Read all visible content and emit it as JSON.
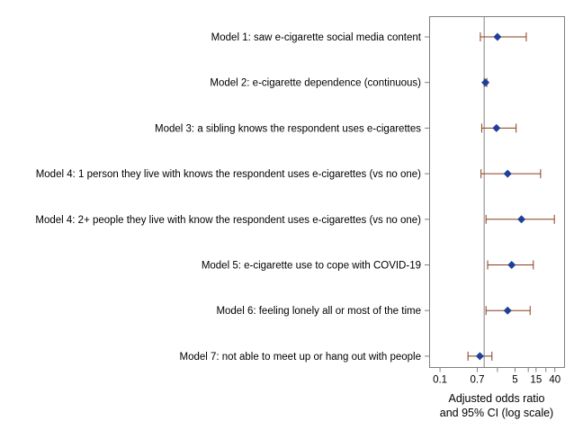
{
  "chart_data": {
    "type": "forest",
    "scale": "log",
    "xlabel_lines": [
      "Adjusted odds ratio",
      "and 95% CI (log scale)"
    ],
    "xticks": [
      {
        "value": 0.1,
        "label": "0.1"
      },
      {
        "value": 0.7,
        "label": "0.7"
      },
      {
        "value": 2,
        "label": ""
      },
      {
        "value": 5,
        "label": "5"
      },
      {
        "value": 10,
        "label": ""
      },
      {
        "value": 15,
        "label": "15"
      },
      {
        "value": 25,
        "label": ""
      },
      {
        "value": 40,
        "label": "40"
      }
    ],
    "xlim": [
      0.07,
      55
    ],
    "reference_line": 1,
    "rows": [
      {
        "label": "Model 1: saw e-cigarette social media content",
        "or": 2.0,
        "lo": 0.82,
        "hi": 9.0
      },
      {
        "label": "Model 2: e-cigarette dependence (continuous)",
        "or": 1.07,
        "lo": 1.0,
        "hi": 1.15
      },
      {
        "label": "Model 3: a sibling knows the respondent uses e-cigarettes",
        "or": 1.9,
        "lo": 0.88,
        "hi": 5.3
      },
      {
        "label": "Model 4: 1 person they live with knows the respondent uses e-cigarettes (vs no one)",
        "or": 3.4,
        "lo": 0.85,
        "hi": 19.0
      },
      {
        "label": "Model 4: 2+ people they live with know the respondent uses e-cigarettes (vs no one)",
        "or": 7.0,
        "lo": 1.1,
        "hi": 39.0
      },
      {
        "label": "Model 5: e-cigarette use to cope with COVID-19",
        "or": 4.2,
        "lo": 1.2,
        "hi": 13.0
      },
      {
        "label": "Model 6: feeling lonely all or most of the time",
        "or": 3.4,
        "lo": 1.1,
        "hi": 11.0
      },
      {
        "label": "Model 7: not able to meet up or hang out with people",
        "or": 0.8,
        "lo": 0.43,
        "hi": 1.5
      }
    ],
    "colors": {
      "marker": "#1f3f99",
      "ci": "#8b3a1a",
      "axis": "#808080"
    }
  }
}
